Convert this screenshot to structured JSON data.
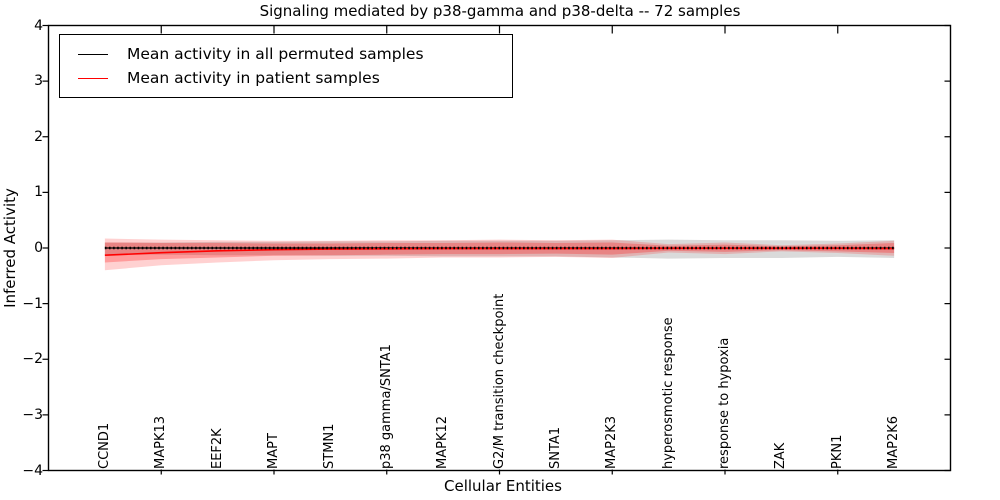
{
  "title": "Signaling mediated by p38-gamma and p38-delta -- 72 samples",
  "legend": {
    "items": [
      {
        "label": "Mean activity in all permuted samples",
        "color": "#000000"
      },
      {
        "label": "Mean activity in patient samples",
        "color": "#ff0000"
      }
    ]
  },
  "chart_data": {
    "type": "line",
    "title": "Signaling mediated by p38-gamma and p38-delta -- 72 samples",
    "xlabel": "Cellular Entities",
    "ylabel": "Inferred Activity",
    "ylim": [
      -4,
      4
    ],
    "yticks": [
      -4,
      -3,
      -2,
      -1,
      0,
      1,
      2,
      3,
      4
    ],
    "xlim": [
      -1,
      15
    ],
    "grid": false,
    "legend_position": "upper left",
    "x_major_tick_indices": [
      1,
      3,
      5,
      7,
      9,
      11,
      13
    ],
    "categories": [
      "CCND1",
      "MAPK13",
      "EEF2K",
      "MAPT",
      "STMN1",
      "p38 gamma/SNTA1",
      "MAPK12",
      "G2/M transition checkpoint",
      "SNTA1",
      "MAP2K3",
      "hyperosmotic response",
      "response to hypoxia",
      "ZAK",
      "PKN1",
      "MAP2K6"
    ],
    "series": [
      {
        "name": "Mean activity in all permuted samples",
        "color": "#000000",
        "style": "solid-with-dot-markers",
        "values": [
          0,
          0,
          0,
          0,
          0,
          0,
          0,
          0,
          0,
          0,
          0,
          0,
          0,
          0,
          0
        ]
      },
      {
        "name": "Mean activity in patient samples",
        "color": "#ff0000",
        "style": "solid",
        "values": [
          -0.13,
          -0.085,
          -0.05,
          -0.03,
          -0.02,
          -0.015,
          -0.01,
          -0.01,
          -0.01,
          -0.01,
          -0.005,
          -0.005,
          -0.005,
          -0.005,
          -0.01
        ]
      }
    ],
    "bands": [
      {
        "name": "permuted-samples-band",
        "color": "#8c8c8c",
        "opacity": 0.32,
        "upper": [
          0.1,
          0.1,
          0.11,
          0.11,
          0.12,
          0.12,
          0.13,
          0.13,
          0.13,
          0.14,
          0.15,
          0.14,
          0.14,
          0.13,
          0.14
        ],
        "lower": [
          -0.12,
          -0.12,
          -0.13,
          -0.13,
          -0.14,
          -0.14,
          -0.15,
          -0.15,
          -0.15,
          -0.17,
          -0.19,
          -0.18,
          -0.18,
          -0.16,
          -0.18
        ]
      },
      {
        "name": "patient-samples-band-outer",
        "color": "#ff0000",
        "opacity": 0.18,
        "upper": [
          0.17,
          0.15,
          0.14,
          0.13,
          0.13,
          0.14,
          0.14,
          0.15,
          0.14,
          0.15,
          0.07,
          0.1,
          0.05,
          0.08,
          0.13
        ],
        "lower": [
          -0.4,
          -0.31,
          -0.26,
          -0.22,
          -0.2,
          -0.19,
          -0.17,
          -0.17,
          -0.16,
          -0.18,
          -0.08,
          -0.11,
          -0.06,
          -0.09,
          -0.14
        ]
      },
      {
        "name": "patient-samples-band-inner",
        "color": "#ff0000",
        "opacity": 0.26,
        "upper": [
          0.1,
          0.09,
          0.09,
          0.08,
          0.08,
          0.09,
          0.09,
          0.1,
          0.09,
          0.1,
          0.04,
          0.06,
          0.03,
          0.05,
          0.09
        ],
        "lower": [
          -0.26,
          -0.2,
          -0.17,
          -0.14,
          -0.13,
          -0.12,
          -0.11,
          -0.11,
          -0.1,
          -0.12,
          -0.05,
          -0.07,
          -0.04,
          -0.06,
          -0.09
        ]
      }
    ]
  },
  "colors": {
    "background": "#ffffff",
    "axis": "#000000",
    "permuted_line": "#000000",
    "patient_line": "#ff0000"
  }
}
